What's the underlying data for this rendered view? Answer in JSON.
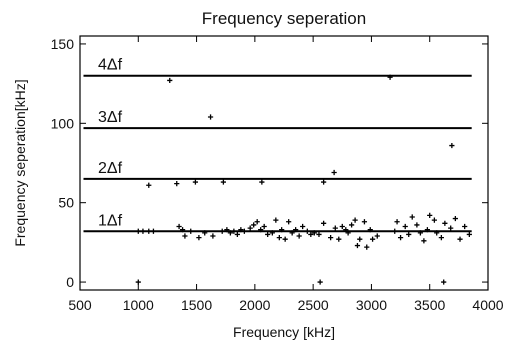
{
  "chart_data": {
    "type": "scatter",
    "title": "Frequency seperation",
    "xlabel": "Frequency [kHz]",
    "ylabel": "Frequency seperation[kHz]",
    "xlim": [
      500,
      4000
    ],
    "ylim": [
      -5,
      155
    ],
    "xticks": [
      500,
      1000,
      1500,
      2000,
      2500,
      3000,
      3500,
      4000
    ],
    "yticks": [
      0,
      50,
      100,
      150
    ],
    "grid": false,
    "reference_lines": [
      {
        "label": "1Δf",
        "y": 32,
        "x_range": [
          530,
          3860
        ]
      },
      {
        "label": "2Δf",
        "y": 65,
        "x_range": [
          530,
          3860
        ]
      },
      {
        "label": "3Δf",
        "y": 97,
        "x_range": [
          530,
          3860
        ]
      },
      {
        "label": "4Δf",
        "y": 130,
        "x_range": [
          530,
          3860
        ]
      }
    ],
    "points": [
      [
        1000,
        0
      ],
      [
        2560,
        0
      ],
      [
        3620,
        0
      ],
      [
        1090,
        61
      ],
      [
        1330,
        62
      ],
      [
        1490,
        63
      ],
      [
        1730,
        63
      ],
      [
        2060,
        63
      ],
      [
        2590,
        63
      ],
      [
        2680,
        69
      ],
      [
        1270,
        127
      ],
      [
        3160,
        129
      ],
      [
        1620,
        104
      ],
      [
        3690,
        86
      ],
      [
        1000,
        32
      ],
      [
        1040,
        32
      ],
      [
        1090,
        32
      ],
      [
        1130,
        32
      ],
      [
        1350,
        35
      ],
      [
        1380,
        33
      ],
      [
        1400,
        29
      ],
      [
        1450,
        32
      ],
      [
        1520,
        28
      ],
      [
        1570,
        31
      ],
      [
        1640,
        29
      ],
      [
        1720,
        32
      ],
      [
        1760,
        33
      ],
      [
        1790,
        31
      ],
      [
        1820,
        32
      ],
      [
        1850,
        30
      ],
      [
        1880,
        33
      ],
      [
        1910,
        32
      ],
      [
        1960,
        34
      ],
      [
        1990,
        36
      ],
      [
        2020,
        38
      ],
      [
        2050,
        33
      ],
      [
        2080,
        35
      ],
      [
        2110,
        30
      ],
      [
        2150,
        31
      ],
      [
        2180,
        39
      ],
      [
        2210,
        28
      ],
      [
        2230,
        33
      ],
      [
        2260,
        27
      ],
      [
        2290,
        38
      ],
      [
        2320,
        31
      ],
      [
        2350,
        33
      ],
      [
        2380,
        29
      ],
      [
        2410,
        35
      ],
      [
        2450,
        32
      ],
      [
        2480,
        30
      ],
      [
        2510,
        31
      ],
      [
        2550,
        30
      ],
      [
        2590,
        37
      ],
      [
        2650,
        28
      ],
      [
        2690,
        34
      ],
      [
        2720,
        27
      ],
      [
        2750,
        35
      ],
      [
        2780,
        33
      ],
      [
        2800,
        31
      ],
      [
        2830,
        36
      ],
      [
        2860,
        39
      ],
      [
        2880,
        23
      ],
      [
        2900,
        27
      ],
      [
        2940,
        38
      ],
      [
        2960,
        22
      ],
      [
        2990,
        33
      ],
      [
        3010,
        27
      ],
      [
        3050,
        29
      ],
      [
        3200,
        32
      ],
      [
        3220,
        38
      ],
      [
        3250,
        28
      ],
      [
        3290,
        35
      ],
      [
        3320,
        30
      ],
      [
        3350,
        41
      ],
      [
        3390,
        36
      ],
      [
        3420,
        31
      ],
      [
        3450,
        26
      ],
      [
        3480,
        33
      ],
      [
        3500,
        42
      ],
      [
        3540,
        39
      ],
      [
        3560,
        31
      ],
      [
        3600,
        28
      ],
      [
        3630,
        37
      ],
      [
        3680,
        34
      ],
      [
        3720,
        40
      ],
      [
        3760,
        27
      ],
      [
        3800,
        35
      ],
      [
        3840,
        30
      ]
    ],
    "colors": {
      "points": "#000000",
      "lines": "#000000",
      "frame": "#000000"
    }
  }
}
